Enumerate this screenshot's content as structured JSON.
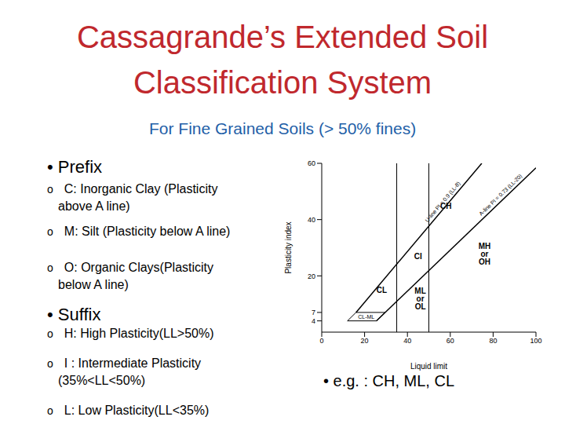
{
  "title": [
    "Cassagrande’s Extended Soil",
    "Classification System"
  ],
  "subtitle": "For Fine Grained Soils (> 50% fines)",
  "sections": [
    {
      "heading": "• Prefix",
      "items": [
        {
          "marker": "o",
          "lines": [
            "C:   Inorganic Clay (Plasticity",
            "above A line)"
          ]
        },
        {
          "marker": "o",
          "lines": [
            "M:  Silt (Plasticity below A line)"
          ]
        },
        {
          "marker": "o",
          "lines": [
            "O:   Organic Clays(Plasticity",
            "below A line)"
          ]
        }
      ]
    },
    {
      "heading": "• Suffix",
      "items": [
        {
          "marker": "o",
          "lines": [
            "H: High Plasticity(LL>50%)"
          ]
        },
        {
          "marker": "o",
          "lines": [
            "I : Intermediate Plasticity",
            "(35%<LL<50%)"
          ]
        },
        {
          "marker": "o",
          "lines": [
            "L: Low Plasticity(LL<35%)"
          ]
        }
      ]
    }
  ],
  "example": "• e.g. :  CH, ML, CL",
  "chart_data": {
    "type": "line",
    "x_label": "Liquid limit",
    "y_label": "Plasticity index",
    "xlim": [
      0,
      100
    ],
    "xticks": [
      0,
      20,
      40,
      60,
      80,
      100
    ],
    "ylim": [
      0,
      60
    ],
    "yticks": [
      4,
      7,
      20,
      40,
      60
    ],
    "grid": false,
    "series": [
      {
        "name": "U-line PI = 0.9 (LL-8)",
        "color": "#000000",
        "x": [
          16,
          74.7
        ],
        "values": [
          7,
          60
        ]
      },
      {
        "name": "A-line PI = 0.73 (LL-20)",
        "color": "#000000",
        "x": [
          25.5,
          100
        ],
        "values": [
          4,
          58.4
        ]
      }
    ],
    "boundaries": [
      {
        "x": [
          35,
          35
        ],
        "values": [
          0,
          60
        ]
      },
      {
        "x": [
          50,
          50
        ],
        "values": [
          0,
          60
        ]
      }
    ],
    "zone": {
      "label": "CL-ML",
      "x": [
        12,
        16,
        29.6,
        25.5,
        12
      ],
      "values": [
        4,
        7,
        7,
        4,
        4
      ]
    },
    "regions": [
      {
        "label": [
          "CH"
        ],
        "x": 58,
        "y": 45
      },
      {
        "label": [
          "CI"
        ],
        "x": 45,
        "y": 27
      },
      {
        "label": [
          "CL"
        ],
        "x": 28,
        "y": 15
      },
      {
        "label": [
          "MH",
          "or",
          "OH"
        ],
        "x": 76,
        "y": 28
      },
      {
        "label": [
          "ML",
          "or",
          "OL"
        ],
        "x": 46,
        "y": 12
      }
    ]
  }
}
